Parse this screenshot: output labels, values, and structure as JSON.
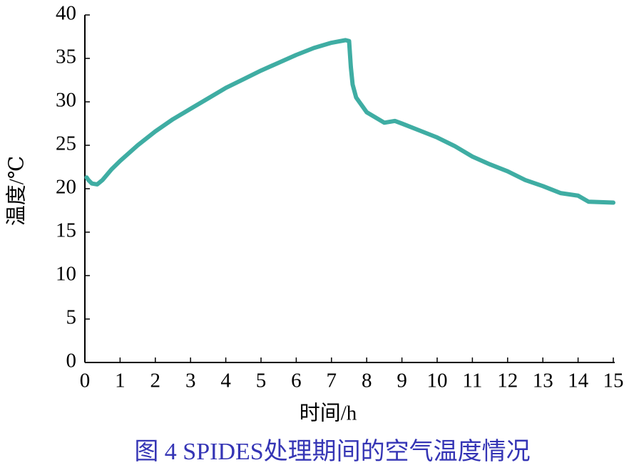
{
  "chart_data": {
    "type": "line",
    "x_label": "时间/h",
    "y_label": "温度/℃",
    "caption": "图 4  SPIDES处理期间的空气温度情况",
    "xlim": [
      0,
      15
    ],
    "xticks": [
      0,
      1,
      2,
      3,
      4,
      5,
      6,
      7,
      8,
      9,
      10,
      11,
      12,
      13,
      14,
      15
    ],
    "ylim": [
      0,
      40
    ],
    "yticks": [
      0,
      5,
      10,
      15,
      20,
      25,
      30,
      35,
      40
    ],
    "grid": false,
    "series": [
      {
        "color": "#3fada3",
        "x": [
          0.05,
          0.1,
          0.2,
          0.35,
          0.5,
          0.75,
          1,
          1.5,
          2,
          2.5,
          3,
          3.5,
          4,
          4.5,
          5,
          5.5,
          6,
          6.5,
          7,
          7.4,
          7.5,
          7.55,
          7.6,
          7.7,
          8,
          8.5,
          8.8,
          9,
          9.5,
          10,
          10.5,
          11,
          11.5,
          12,
          12.5,
          13,
          13.5,
          14,
          14.3,
          15
        ],
        "values": [
          21.3,
          21.0,
          20.6,
          20.5,
          21.0,
          22.2,
          23.2,
          25.0,
          26.6,
          28.0,
          29.2,
          30.4,
          31.6,
          32.6,
          33.6,
          34.5,
          35.4,
          36.2,
          36.8,
          37.1,
          37.0,
          34.0,
          32.0,
          30.5,
          28.8,
          27.6,
          27.8,
          27.5,
          26.7,
          25.9,
          24.9,
          23.7,
          22.8,
          22.0,
          21.0,
          20.3,
          19.5,
          19.2,
          18.5,
          18.4
        ]
      }
    ]
  }
}
